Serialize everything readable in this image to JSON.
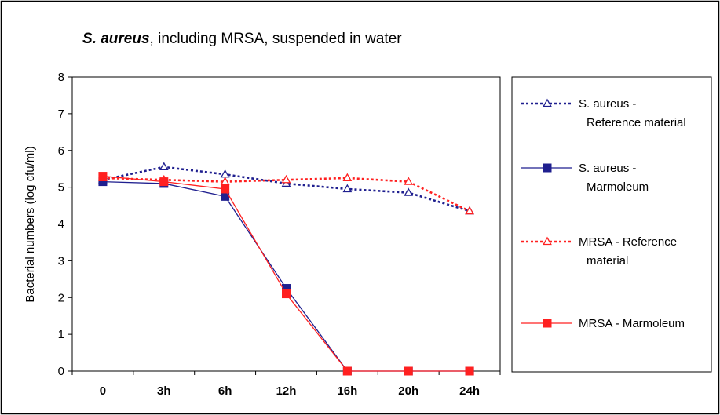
{
  "chart_data": {
    "type": "line",
    "title_italic": "S. aureus",
    "title_rest": ", including MRSA, suspended in water",
    "xlabel": "",
    "ylabel": "Bacterial numbers (log cfu/ml)",
    "categories": [
      "0",
      "3h",
      "6h",
      "12h",
      "16h",
      "20h",
      "24h"
    ],
    "ylim": [
      0,
      8
    ],
    "yticks": [
      "0",
      "1",
      "2",
      "3",
      "4",
      "5",
      "6",
      "7",
      "8"
    ],
    "grid": false,
    "legend_position": "right",
    "series": [
      {
        "name": "S. aureus - Reference material",
        "legend_lines": [
          "S. aureus -",
          "Reference material"
        ],
        "values": [
          5.2,
          5.55,
          5.35,
          5.1,
          4.95,
          4.85,
          4.35
        ],
        "color": "#1f1f8f",
        "line_style": "dotted",
        "marker": "triangle-open"
      },
      {
        "name": "S. aureus - Marmoleum",
        "legend_lines": [
          "S. aureus -",
          "Marmoleum"
        ],
        "values": [
          5.15,
          5.1,
          4.75,
          2.25,
          0,
          0,
          0
        ],
        "color": "#1f1f8f",
        "line_style": "solid",
        "marker": "square-filled"
      },
      {
        "name": "MRSA - Reference material",
        "legend_lines": [
          "MRSA - Reference",
          "material"
        ],
        "values": [
          5.25,
          5.2,
          5.15,
          5.2,
          5.25,
          5.15,
          4.35
        ],
        "color": "#ff2020",
        "line_style": "dotted",
        "marker": "triangle-open"
      },
      {
        "name": "MRSA - Marmoleum",
        "legend_lines": [
          "MRSA - Marmoleum"
        ],
        "values": [
          5.3,
          5.15,
          4.95,
          2.1,
          0,
          0,
          0
        ],
        "color": "#ff2020",
        "line_style": "solid",
        "marker": "square-filled"
      }
    ]
  }
}
